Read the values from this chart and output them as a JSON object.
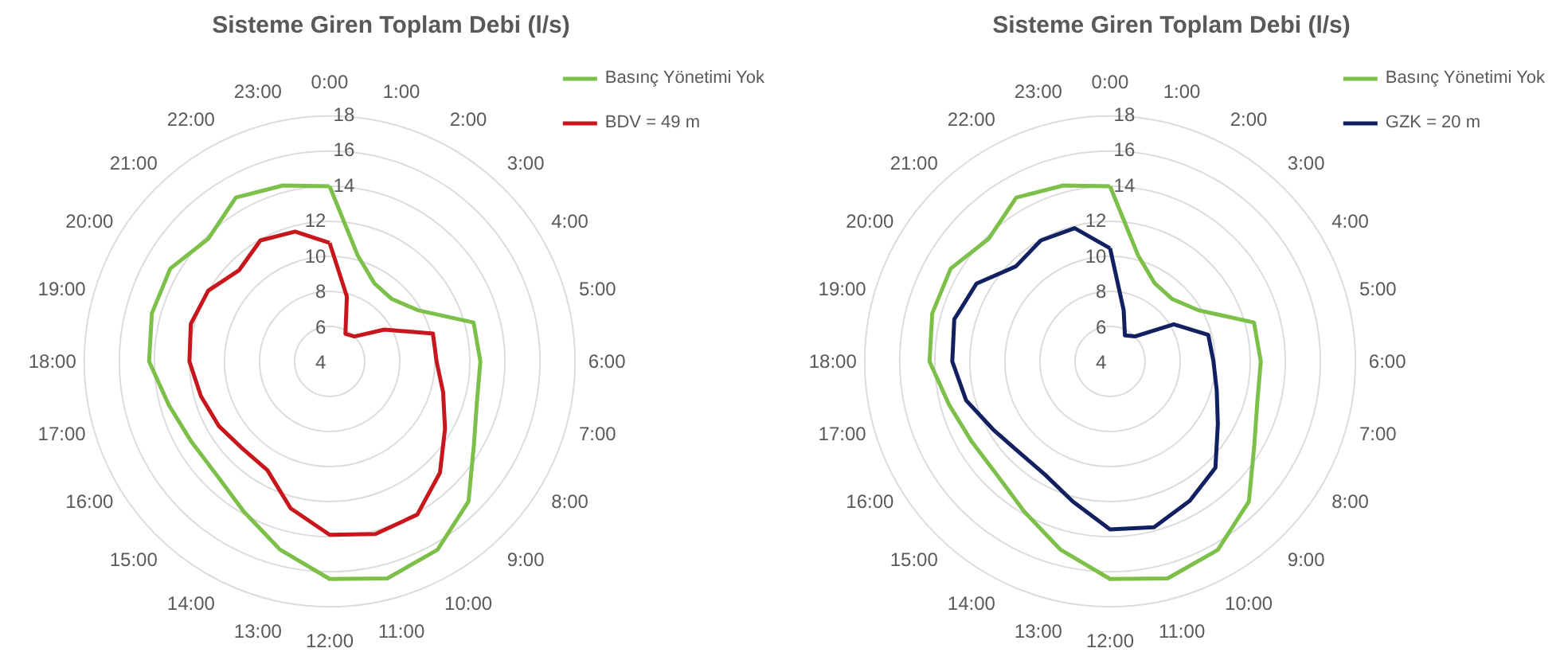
{
  "chart_data": [
    {
      "type": "radar",
      "title": "Sisteme Giren Toplam Debi (l/s)",
      "categories": [
        "0:00",
        "1:00",
        "2:00",
        "3:00",
        "4:00",
        "5:00",
        "6:00",
        "7:00",
        "8:00",
        "9:00",
        "10:00",
        "11:00",
        "12:00",
        "13:00",
        "14:00",
        "15:00",
        "16:00",
        "17:00",
        "18:00",
        "19:00",
        "20:00",
        "21:00",
        "22:00",
        "23:00"
      ],
      "ylim": [
        4,
        18
      ],
      "yticks": [
        4,
        6,
        8,
        10,
        12,
        14,
        16,
        18
      ],
      "grid": true,
      "legend": "top right",
      "series": [
        {
          "name": "Basınç Yönetimi Yok",
          "color": "#7cc04a",
          "values": [
            13.9,
            10.2,
            9.1,
            9.0,
            9.8,
            12.5,
            12.6,
            12.7,
            13.5,
            15.2,
            16.3,
            16.7,
            16.3,
            15.0,
            13.8,
            13.1,
            13.1,
            13.5,
            14.3,
            14.5,
            14.5,
            13.8,
            14.7,
            14.3
          ]
        },
        {
          "name": "BDV = 49 m",
          "color": "#c8161d",
          "values": [
            10.7,
            7.8,
            5.8,
            6.0,
            7.6,
            10.1,
            10.1,
            10.7,
            11.6,
            12.9,
            14.0,
            14.1,
            13.8,
            12.6,
            11.1,
            11.0,
            11.3,
            11.6,
            12.0,
            12.2,
            12.0,
            11.3,
            11.9,
            11.6
          ]
        }
      ]
    },
    {
      "type": "radar",
      "title": "Sisteme Giren Toplam Debi (l/s)",
      "categories": [
        "0:00",
        "1:00",
        "2:00",
        "3:00",
        "4:00",
        "5:00",
        "6:00",
        "7:00",
        "8:00",
        "9:00",
        "10:00",
        "11:00",
        "12:00",
        "13:00",
        "14:00",
        "15:00",
        "16:00",
        "17:00",
        "18:00",
        "19:00",
        "20:00",
        "21:00",
        "22:00",
        "23:00"
      ],
      "ylim": [
        4,
        18
      ],
      "yticks": [
        4,
        6,
        8,
        10,
        12,
        14,
        16,
        18
      ],
      "grid": true,
      "legend": "top right",
      "series": [
        {
          "name": "Basınç Yönetimi Yok",
          "color": "#7cc04a",
          "values": [
            13.9,
            10.2,
            9.1,
            9.0,
            9.8,
            12.5,
            12.6,
            12.7,
            13.5,
            15.2,
            16.3,
            16.7,
            16.3,
            15.0,
            13.8,
            13.1,
            13.1,
            13.5,
            14.3,
            14.5,
            14.5,
            13.8,
            14.7,
            14.3
          ]
        },
        {
          "name": "GZK = 20 m",
          "color": "#102060",
          "values": [
            10.4,
            7.0,
            5.7,
            6.0,
            8.2,
            9.8,
            9.9,
            10.3,
            11.1,
            12.5,
            13.1,
            13.7,
            13.5,
            12.2,
            11.4,
            11.3,
            11.7,
            12.5,
            13.0,
            13.2,
            12.8,
            11.6,
            11.9,
            11.8
          ]
        }
      ]
    }
  ]
}
